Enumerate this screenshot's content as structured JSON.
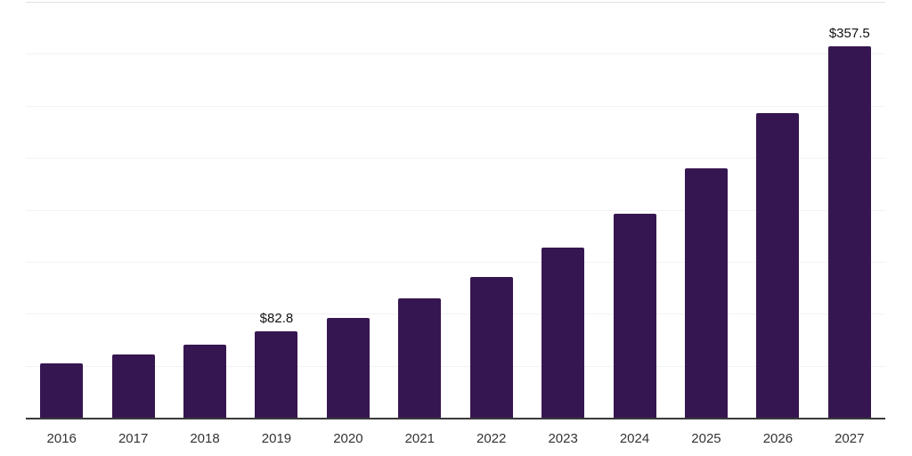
{
  "chart_data": {
    "type": "bar",
    "title": "",
    "xlabel": "",
    "ylabel": "",
    "categories": [
      "2016",
      "2017",
      "2018",
      "2019",
      "2020",
      "2021",
      "2022",
      "2023",
      "2024",
      "2025",
      "2026",
      "2027"
    ],
    "values": [
      52.0,
      61.1,
      70.5,
      82.8,
      96.2,
      114.5,
      135.6,
      163.3,
      196.1,
      239.6,
      293.2,
      357.5
    ],
    "data_labels": [
      {
        "index": 3,
        "category": "2019",
        "text": "$82.8"
      },
      {
        "index": 11,
        "category": "2027",
        "text": "$357.5"
      }
    ],
    "ylim": [
      0,
      400
    ],
    "gridline_step": 50,
    "grid": "horizontal",
    "legend": "none",
    "y_axis_labels_visible": false
  },
  "colors": {
    "background": "#ffffff",
    "bar": "#361650",
    "gridline": "#f2f2f2",
    "gridline_top": "#e0e0e0",
    "axis_line": "#3a3a3a",
    "tick_label": "#333333",
    "data_label": "#111111"
  }
}
